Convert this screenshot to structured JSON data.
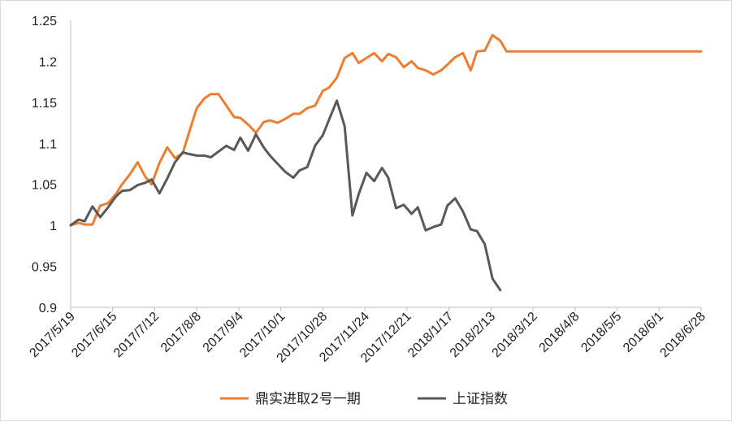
{
  "chart_data": {
    "type": "line",
    "title": "",
    "xlabel": "",
    "ylabel": "",
    "ylim": [
      0.9,
      1.25
    ],
    "yticks": [
      0.9,
      0.95,
      1,
      1.05,
      1.1,
      1.15,
      1.2,
      1.25
    ],
    "ytick_labels": [
      "0.9",
      "0.95",
      "1",
      "1.05",
      "1.1",
      "1.15",
      "1.2",
      "1.25"
    ],
    "xtick_labels": [
      "2017/5/19",
      "2017/6/15",
      "2017/7/12",
      "2017/8/8",
      "2017/9/4",
      "2017/10/1",
      "2017/10/28",
      "2017/11/24",
      "2017/12/21",
      "2018/1/17",
      "2018/2/13",
      "2018/3/12",
      "2018/4/8",
      "2018/5/5",
      "2018/6/1",
      "2018/6/28"
    ],
    "grid": false,
    "legend_position": "bottom",
    "series": [
      {
        "name": "鼎实进取2号一期",
        "color": "#ed7d31",
        "points": [
          [
            "2017/5/19",
            1.0
          ],
          [
            "2017/5/24",
            1.003
          ],
          [
            "2017/5/28",
            1.001
          ],
          [
            "2017/6/2",
            1.001
          ],
          [
            "2017/6/7",
            1.024
          ],
          [
            "2017/6/12",
            1.027
          ],
          [
            "2017/6/17",
            1.038
          ],
          [
            "2017/6/21",
            1.05
          ],
          [
            "2017/6/26",
            1.062
          ],
          [
            "2017/7/1",
            1.077
          ],
          [
            "2017/7/6",
            1.059
          ],
          [
            "2017/7/10",
            1.05
          ],
          [
            "2017/7/15",
            1.076
          ],
          [
            "2017/7/20",
            1.095
          ],
          [
            "2017/7/25",
            1.082
          ],
          [
            "2017/7/30",
            1.088
          ],
          [
            "2017/8/3",
            1.113
          ],
          [
            "2017/8/8",
            1.143
          ],
          [
            "2017/8/13",
            1.155
          ],
          [
            "2017/8/17",
            1.16
          ],
          [
            "2017/8/22",
            1.16
          ],
          [
            "2017/8/27",
            1.146
          ],
          [
            "2017/9/1",
            1.132
          ],
          [
            "2017/9/5",
            1.131
          ],
          [
            "2017/9/10",
            1.123
          ],
          [
            "2017/9/15",
            1.113
          ],
          [
            "2017/9/20",
            1.126
          ],
          [
            "2017/9/24",
            1.128
          ],
          [
            "2017/9/29",
            1.125
          ],
          [
            "2017/10/4",
            1.13
          ],
          [
            "2017/10/9",
            1.136
          ],
          [
            "2017/10/13",
            1.136
          ],
          [
            "2017/10/18",
            1.143
          ],
          [
            "2017/10/23",
            1.146
          ],
          [
            "2017/10/28",
            1.164
          ],
          [
            "2017/11/1",
            1.168
          ],
          [
            "2017/11/6",
            1.18
          ],
          [
            "2017/11/11",
            1.204
          ],
          [
            "2017/11/16",
            1.21
          ],
          [
            "2017/11/20",
            1.198
          ],
          [
            "2017/11/25",
            1.204
          ],
          [
            "2017/11/30",
            1.21
          ],
          [
            "2017/12/5",
            1.2
          ],
          [
            "2017/12/9",
            1.209
          ],
          [
            "2017/12/14",
            1.205
          ],
          [
            "2017/12/19",
            1.193
          ],
          [
            "2017/12/24",
            1.2
          ],
          [
            "2017/12/28",
            1.192
          ],
          [
            "2018/1/2",
            1.189
          ],
          [
            "2018/1/7",
            1.184
          ],
          [
            "2018/1/12",
            1.189
          ],
          [
            "2018/1/16",
            1.196
          ],
          [
            "2018/1/21",
            1.205
          ],
          [
            "2018/1/26",
            1.21
          ],
          [
            "2018/1/31",
            1.189
          ],
          [
            "2018/2/4",
            1.212
          ],
          [
            "2018/2/9",
            1.213
          ],
          [
            "2018/2/14",
            1.232
          ],
          [
            "2018/2/19",
            1.225
          ],
          [
            "2018/2/23",
            1.212
          ],
          [
            "2018/6/28",
            1.212
          ]
        ]
      },
      {
        "name": "上证指数",
        "color": "#595959",
        "points": [
          [
            "2017/5/19",
            1.0
          ],
          [
            "2017/5/24",
            1.007
          ],
          [
            "2017/5/28",
            1.005
          ],
          [
            "2017/6/2",
            1.023
          ],
          [
            "2017/6/7",
            1.01
          ],
          [
            "2017/6/12",
            1.022
          ],
          [
            "2017/6/17",
            1.035
          ],
          [
            "2017/6/21",
            1.042
          ],
          [
            "2017/6/26",
            1.043
          ],
          [
            "2017/7/1",
            1.049
          ],
          [
            "2017/7/6",
            1.052
          ],
          [
            "2017/7/10",
            1.056
          ],
          [
            "2017/7/15",
            1.039
          ],
          [
            "2017/7/20",
            1.057
          ],
          [
            "2017/7/25",
            1.077
          ],
          [
            "2017/7/30",
            1.089
          ],
          [
            "2017/8/3",
            1.087
          ],
          [
            "2017/8/8",
            1.085
          ],
          [
            "2017/8/13",
            1.085
          ],
          [
            "2017/8/17",
            1.083
          ],
          [
            "2017/8/22",
            1.09
          ],
          [
            "2017/8/27",
            1.097
          ],
          [
            "2017/9/1",
            1.092
          ],
          [
            "2017/9/5",
            1.107
          ],
          [
            "2017/9/10",
            1.091
          ],
          [
            "2017/9/15",
            1.111
          ],
          [
            "2017/9/20",
            1.095
          ],
          [
            "2017/9/24",
            1.085
          ],
          [
            "2017/9/29",
            1.075
          ],
          [
            "2017/10/4",
            1.065
          ],
          [
            "2017/10/9",
            1.058
          ],
          [
            "2017/10/13",
            1.067
          ],
          [
            "2017/10/18",
            1.071
          ],
          [
            "2017/10/23",
            1.097
          ],
          [
            "2017/10/28",
            1.11
          ],
          [
            "2017/11/1",
            1.129
          ],
          [
            "2017/11/6",
            1.152
          ],
          [
            "2017/11/11",
            1.121
          ],
          [
            "2017/11/16",
            1.012
          ],
          [
            "2017/11/20",
            1.038
          ],
          [
            "2017/11/25",
            1.064
          ],
          [
            "2017/11/30",
            1.054
          ],
          [
            "2017/12/5",
            1.07
          ],
          [
            "2017/12/9",
            1.058
          ],
          [
            "2017/12/14",
            1.021
          ],
          [
            "2017/12/19",
            1.025
          ],
          [
            "2017/12/24",
            1.014
          ],
          [
            "2017/12/28",
            1.022
          ],
          [
            "2018/1/2",
            0.994
          ],
          [
            "2018/1/7",
            0.998
          ],
          [
            "2018/1/12",
            1.001
          ],
          [
            "2018/1/16",
            1.024
          ],
          [
            "2018/1/21",
            1.033
          ],
          [
            "2018/1/26",
            1.017
          ],
          [
            "2018/1/31",
            0.995
          ],
          [
            "2018/2/4",
            0.993
          ],
          [
            "2018/2/9",
            0.977
          ],
          [
            "2018/2/14",
            0.935
          ],
          [
            "2018/2/19",
            0.921
          ]
        ]
      }
    ]
  }
}
